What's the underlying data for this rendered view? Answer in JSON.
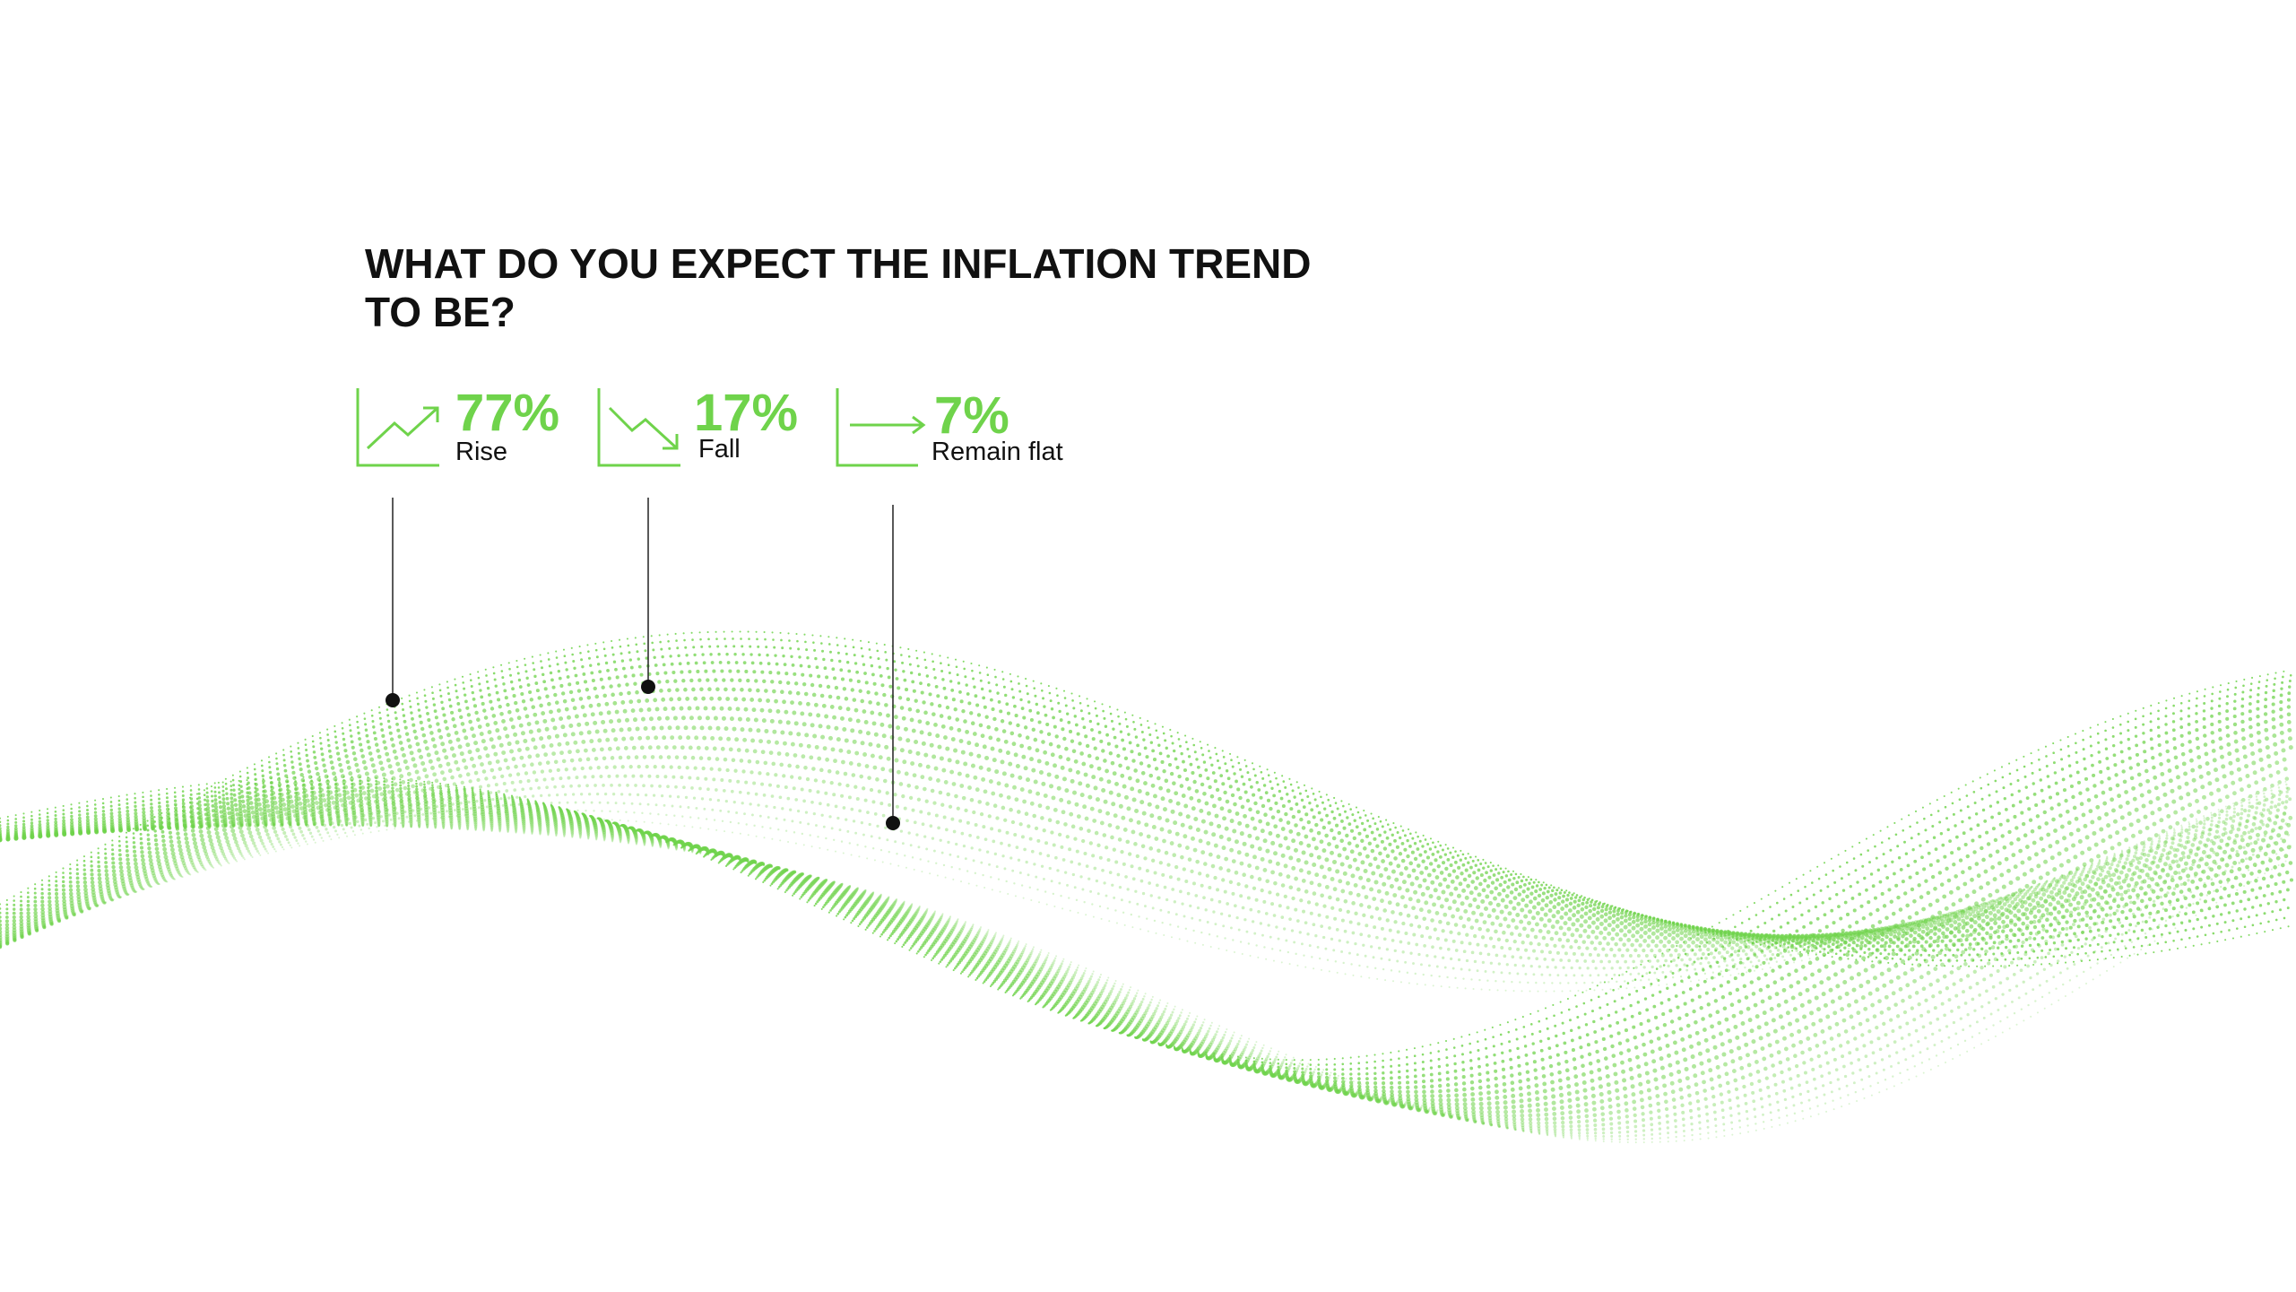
{
  "title": "WHAT DO YOU EXPECT THE INFLATION TREND TO BE?",
  "stats": [
    {
      "value": "77%",
      "label": "Rise"
    },
    {
      "value": "17%",
      "label": "Fall"
    },
    {
      "value": "7%",
      "label": "Remain flat"
    }
  ]
}
